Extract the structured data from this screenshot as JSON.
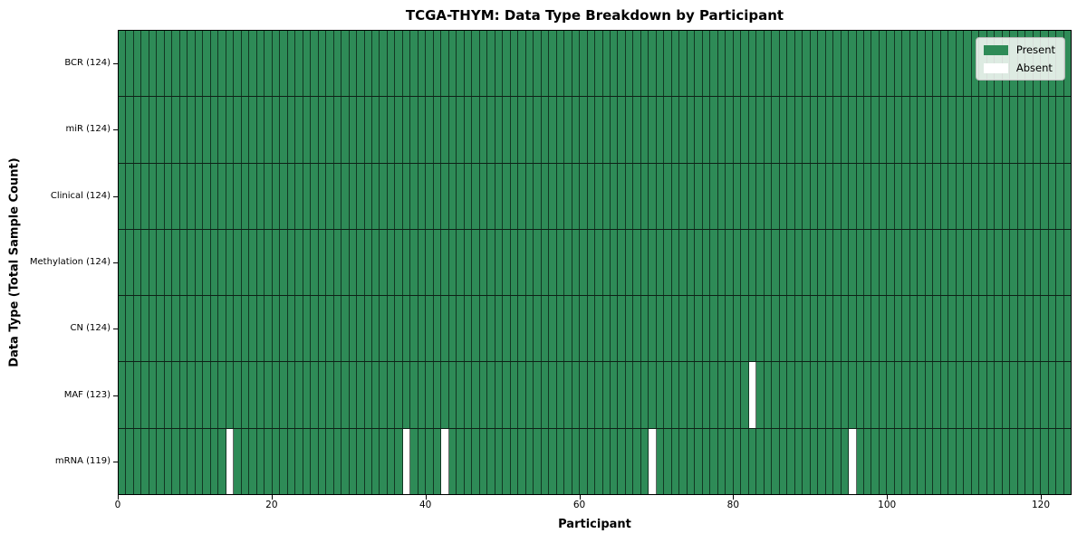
{
  "chart_data": {
    "type": "heatmap",
    "title": "TCGA-THYM: Data Type Breakdown by Participant",
    "xlabel": "Participant",
    "ylabel": "Data Type (Total Sample Count)",
    "x_ticks": [
      0,
      20,
      40,
      60,
      80,
      100,
      120
    ],
    "x_range": [
      0,
      124
    ],
    "n_participants": 124,
    "rows": [
      {
        "label": "BCR (124)",
        "data_type": "BCR",
        "present_count": 124,
        "absent_participants": []
      },
      {
        "label": "miR (124)",
        "data_type": "miR",
        "present_count": 124,
        "absent_participants": []
      },
      {
        "label": "Clinical (124)",
        "data_type": "Clinical",
        "present_count": 124,
        "absent_participants": []
      },
      {
        "label": "Methylation (124)",
        "data_type": "Methylation",
        "present_count": 124,
        "absent_participants": []
      },
      {
        "label": "CN (124)",
        "data_type": "CN",
        "present_count": 124,
        "absent_participants": []
      },
      {
        "label": "MAF (123)",
        "data_type": "MAF",
        "present_count": 123,
        "absent_participants": [
          82
        ]
      },
      {
        "label": "mRNA (119)",
        "data_type": "mRNA",
        "present_count": 119,
        "absent_participants": [
          14,
          37,
          42,
          69,
          95
        ]
      }
    ],
    "legend": [
      {
        "label": "Present",
        "color": "#2e8b57"
      },
      {
        "label": "Absent",
        "color": "#ffffff"
      }
    ],
    "colors": {
      "present": "#2e8b57",
      "absent": "#ffffff",
      "bar_edge": "rgba(0,0,0,0.60)",
      "row_separator": "#0e2117",
      "axis": "#000000",
      "legend_background": "rgba(252,252,250,0.85)"
    },
    "legend_position": "upper right",
    "grid": false
  }
}
